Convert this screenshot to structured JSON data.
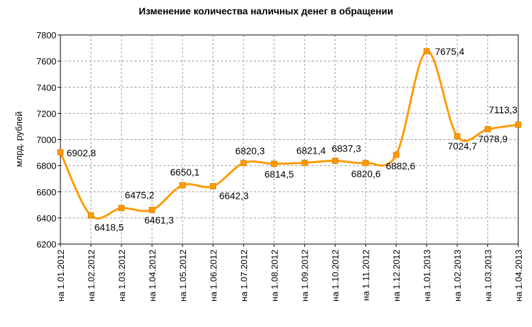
{
  "chart_data": {
    "type": "line",
    "title": "Изменение количества наличных денег в обращении",
    "ylabel": "млрд. рублей",
    "xlabel": "",
    "ylim": [
      6200,
      7800
    ],
    "yticks": [
      6200,
      6400,
      6600,
      6800,
      7000,
      7200,
      7400,
      7600,
      7800
    ],
    "ytick_labels": [
      "6200",
      "6400",
      "6600",
      "6800",
      "7000",
      "7200",
      "7400",
      "7600",
      "7800"
    ],
    "grid": true,
    "line_color": "#FF9900",
    "categories": [
      "на 1.01.2012",
      "на 1.02.2012",
      "на 1.03.2012",
      "на 1.04.2012",
      "на 1.05.2012",
      "на 1.06.2012",
      "на 1.07.2012",
      "на 1.08.2012",
      "на 1.09.2012",
      "на 1.10.2012",
      "на 1.11.2012",
      "на 1.12.2012",
      "на 1.01.2013",
      "на 1.02.2013",
      "на 1.03.2013",
      "на 1.04.2013"
    ],
    "values": [
      6902.8,
      6418.5,
      6475.2,
      6461.3,
      6650.1,
      6642.3,
      6820.3,
      6814.5,
      6821.4,
      6837.3,
      6820.6,
      6882.6,
      7675.4,
      7024.7,
      7078.9,
      7113.3
    ],
    "data_labels": [
      "6902,8",
      "6418,5",
      "6475,2",
      "6461,3",
      "6650,1",
      "6642,3",
      "6820,3",
      "6814,5",
      "6821,4",
      "6837,3",
      "6820,6",
      "6882,6",
      "7675,4",
      "7024,7",
      "7078,9",
      "7113,3"
    ]
  }
}
